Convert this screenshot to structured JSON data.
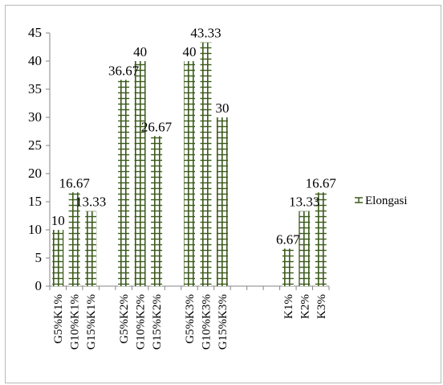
{
  "chart_data": {
    "type": "bar",
    "title": "",
    "xlabel": "",
    "ylabel": "",
    "ylim": [
      0,
      45
    ],
    "yticks": [
      0,
      5,
      10,
      15,
      20,
      25,
      30,
      35,
      40,
      45
    ],
    "grid": false,
    "legend": "right",
    "categories": [
      "G5%K1%",
      "G10%K1%",
      "G15%K1%",
      "",
      "G5%K2%",
      "G10%K2%",
      "G15%K2%",
      "",
      "G5%K3%",
      "G10%K3%",
      "G15%K3%",
      "",
      "",
      "",
      "K1%",
      "K2%",
      "K3%"
    ],
    "series": [
      {
        "name": "Elongasi",
        "color": "#3a5a1a",
        "values": [
          10,
          16.67,
          13.33,
          null,
          36.67,
          40,
          26.67,
          null,
          40,
          43.33,
          30,
          null,
          null,
          null,
          6.67,
          13.33,
          16.67
        ],
        "labels": [
          "10",
          "16.67",
          "13.33",
          "",
          "36.67",
          "40",
          "26.67",
          "",
          "40",
          "43.33",
          "30",
          "",
          "",
          "",
          "6.67",
          "13.33",
          "16.67"
        ]
      }
    ]
  }
}
